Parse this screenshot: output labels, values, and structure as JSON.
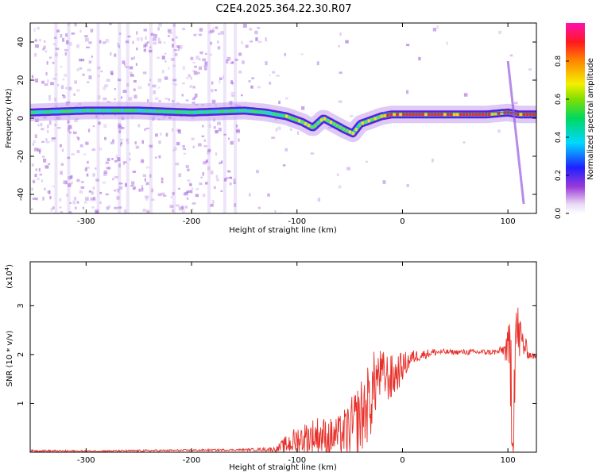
{
  "title": "C2E4.2025.364.22.30.R07",
  "colors": {
    "snr_line": "#e8302a",
    "frame": "#000000",
    "spectrum_core": "#e0302a"
  },
  "chart_data": [
    {
      "type": "heatmap",
      "title": "C2E4.2025.364.22.30.R07",
      "xlabel": "Height of straight line (km)",
      "ylabel": "Frequency (Hz)",
      "xlim": [
        -353,
        127
      ],
      "ylim": [
        -50,
        50
      ],
      "xticks": [
        -300,
        -200,
        -100,
        0,
        100
      ],
      "yticks": [
        -40,
        -20,
        0,
        20,
        40
      ],
      "xtick_labels": [
        "-300",
        "-200",
        "-100",
        "0",
        "100"
      ],
      "ytick_labels": [
        "-40",
        "-20",
        "0",
        "20",
        "40"
      ],
      "ridge": {
        "x": [
          -353,
          -300,
          -250,
          -200,
          -150,
          -130,
          -110,
          -95,
          -85,
          -75,
          -65,
          -55,
          -47,
          -40,
          -30,
          -20,
          -10,
          0,
          20,
          50,
          80,
          100,
          110,
          127
        ],
        "freq": [
          3,
          4,
          4,
          3,
          4,
          3,
          1,
          -2,
          -5,
          0,
          -3,
          -6,
          -8,
          -3,
          -1,
          1,
          2,
          2,
          2,
          2,
          2,
          3,
          2,
          2
        ]
      },
      "spike_feature": {
        "x": [
          100,
          115
        ],
        "freq": [
          30,
          -45
        ]
      },
      "colorbar": {
        "label": "Normalized spectral amplitude",
        "range": [
          0.0,
          1.0
        ],
        "ticks": [
          0.0,
          0.2,
          0.4,
          0.6,
          0.8
        ],
        "tick_labels": [
          "0.0",
          "0.2",
          "0.4",
          "0.6",
          "0.8"
        ]
      }
    },
    {
      "type": "line",
      "xlabel": "Height of straight line (km)",
      "ylabel": "SNR (10 * v/v)",
      "multiplier": "(x10",
      "multiplier_exp": "4",
      "multiplier_close": ")",
      "xlim": [
        -353,
        127
      ],
      "ylim": [
        0,
        3.9
      ],
      "xticks": [
        -300,
        -200,
        -100,
        0,
        100
      ],
      "yticks": [
        1,
        2,
        3
      ],
      "xtick_labels": [
        "-300",
        "-200",
        "-100",
        "0",
        "100"
      ],
      "ytick_labels": [
        "1",
        "2",
        "3"
      ],
      "series": [
        {
          "name": "SNR",
          "x": [
            -353,
            -300,
            -250,
            -200,
            -150,
            -120,
            -110,
            -100,
            -90,
            -80,
            -70,
            -60,
            -50,
            -40,
            -30,
            -25,
            -20,
            -10,
            0,
            10,
            20,
            30,
            40,
            50,
            60,
            70,
            80,
            90,
            95,
            100,
            103,
            105,
            107,
            110,
            115,
            120,
            127
          ],
          "y": [
            0.03,
            0.02,
            0.03,
            0.04,
            0.05,
            0.06,
            0.15,
            0.25,
            0.3,
            0.35,
            0.3,
            0.35,
            0.45,
            0.7,
            1.1,
            1.5,
            1.6,
            1.5,
            1.75,
            1.95,
            2.0,
            2.05,
            2.05,
            2.05,
            2.05,
            2.05,
            2.05,
            2.05,
            2.1,
            2.1,
            1.8,
            0.5,
            2.5,
            2.4,
            2.2,
            2.0,
            1.95
          ],
          "noise": [
            0.02,
            0.02,
            0.02,
            0.02,
            0.02,
            0.05,
            0.2,
            0.3,
            0.35,
            0.4,
            0.4,
            0.4,
            0.6,
            0.8,
            0.8,
            0.7,
            0.5,
            0.5,
            0.3,
            0.15,
            0.1,
            0.08,
            0.06,
            0.05,
            0.06,
            0.06,
            0.06,
            0.06,
            0.1,
            0.4,
            1.4,
            1.2,
            1.0,
            0.6,
            0.3,
            0.08,
            0.05
          ]
        }
      ]
    }
  ]
}
